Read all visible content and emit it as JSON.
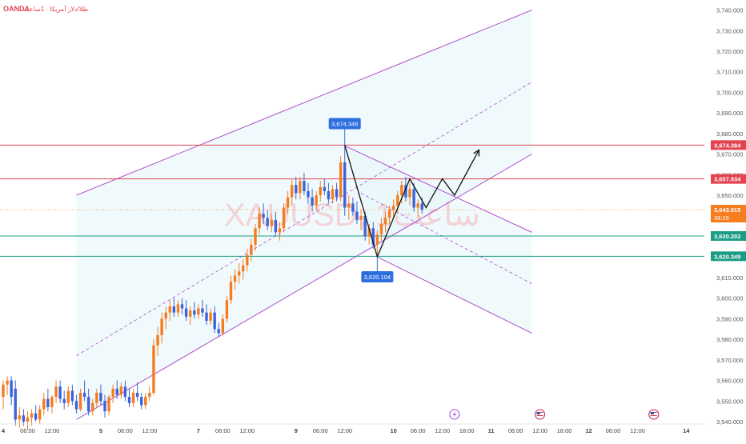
{
  "header": {
    "broker": "OANDA",
    "subtitle": "طلا/دلار آمریکا · 1ساعت"
  },
  "watermark": "XAUUSD, 1ساعت",
  "colors": {
    "up": "#f57c1f",
    "down": "#3d63d8",
    "channel": "#b04ec7",
    "channel_fill": "#e6f6fb",
    "resistance": "#e2434f",
    "support": "#1c9c85",
    "callout": "#2e6fe0",
    "current": "#f57c1f",
    "path": "#111111"
  },
  "chart_data": {
    "type": "candlestick",
    "symbol": "XAUUSD",
    "timeframe": "1ساعت",
    "ylim": [
      3540,
      3741
    ],
    "y_ticks": [
      3540,
      3550,
      3560,
      3570,
      3580,
      3590,
      3600,
      3610,
      3620,
      3630,
      3640,
      3650,
      3660,
      3670,
      3680,
      3690,
      3700,
      3710,
      3720,
      3730,
      3740
    ],
    "y_tick_labels": [
      "3,540.000",
      "3,550.000",
      "3,560.000",
      "3,570.000",
      "3,580.000",
      "3,590.000",
      "3,600.000",
      "3,610.000",
      "3,620.000",
      "3,630.000",
      "3,640.000",
      "3,650.000",
      "3,660.000",
      "3,670.000",
      "3,680.000",
      "3,690.000",
      "3,700.000",
      "3,710.000",
      "3,720.000",
      "3,730.000",
      "3,740.000"
    ],
    "x_ticks": [
      {
        "label": "4",
        "bold": true,
        "t": 0
      },
      {
        "label": "06:00",
        "bold": false,
        "t": 6
      },
      {
        "label": "12:00",
        "bold": false,
        "t": 12
      },
      {
        "label": "5",
        "bold": true,
        "t": 24
      },
      {
        "label": "06:00",
        "bold": false,
        "t": 30
      },
      {
        "label": "12:00",
        "bold": false,
        "t": 36
      },
      {
        "label": "7",
        "bold": true,
        "t": 48
      },
      {
        "label": "06:00",
        "bold": false,
        "t": 54
      },
      {
        "label": "12:00",
        "bold": false,
        "t": 60
      },
      {
        "label": "9",
        "bold": true,
        "t": 72
      },
      {
        "label": "06:00",
        "bold": false,
        "t": 78
      },
      {
        "label": "12:00",
        "bold": false,
        "t": 84
      },
      {
        "label": "10",
        "bold": true,
        "t": 96
      },
      {
        "label": "06:00",
        "bold": false,
        "t": 102
      },
      {
        "label": "12:00",
        "bold": false,
        "t": 108
      },
      {
        "label": "18:00",
        "bold": false,
        "t": 114
      },
      {
        "label": "11",
        "bold": true,
        "t": 120
      },
      {
        "label": "06:00",
        "bold": false,
        "t": 126
      },
      {
        "label": "12:00",
        "bold": false,
        "t": 132
      },
      {
        "label": "18:00",
        "bold": false,
        "t": 138
      },
      {
        "label": "12",
        "bold": true,
        "t": 144
      },
      {
        "label": "06:00",
        "bold": false,
        "t": 150
      },
      {
        "label": "12:00",
        "bold": false,
        "t": 156
      },
      {
        "label": "14",
        "bold": true,
        "t": 168
      }
    ],
    "candles": [
      {
        "t": 0,
        "o": 3552,
        "h": 3560,
        "l": 3546,
        "c": 3558
      },
      {
        "t": 1,
        "o": 3558,
        "h": 3562,
        "l": 3553,
        "c": 3560
      },
      {
        "t": 2,
        "o": 3560,
        "h": 3562,
        "l": 3548,
        "c": 3552
      },
      {
        "t": 3,
        "o": 3556,
        "h": 3560,
        "l": 3538,
        "c": 3541
      },
      {
        "t": 4,
        "o": 3541,
        "h": 3547,
        "l": 3537,
        "c": 3543
      },
      {
        "t": 5,
        "o": 3543,
        "h": 3546,
        "l": 3538,
        "c": 3540
      },
      {
        "t": 6,
        "o": 3540,
        "h": 3545,
        "l": 3536,
        "c": 3542
      },
      {
        "t": 7,
        "o": 3542,
        "h": 3546,
        "l": 3538,
        "c": 3544
      },
      {
        "t": 8,
        "o": 3544,
        "h": 3548,
        "l": 3540,
        "c": 3541
      },
      {
        "t": 9,
        "o": 3541,
        "h": 3548,
        "l": 3539,
        "c": 3546
      },
      {
        "t": 10,
        "o": 3546,
        "h": 3554,
        "l": 3543,
        "c": 3551
      },
      {
        "t": 11,
        "o": 3551,
        "h": 3556,
        "l": 3545,
        "c": 3547
      },
      {
        "t": 12,
        "o": 3547,
        "h": 3553,
        "l": 3544,
        "c": 3552
      },
      {
        "t": 13,
        "o": 3552,
        "h": 3560,
        "l": 3549,
        "c": 3557
      },
      {
        "t": 14,
        "o": 3557,
        "h": 3560,
        "l": 3549,
        "c": 3551
      },
      {
        "t": 15,
        "o": 3551,
        "h": 3555,
        "l": 3546,
        "c": 3549
      },
      {
        "t": 16,
        "o": 3549,
        "h": 3557,
        "l": 3547,
        "c": 3555
      },
      {
        "t": 17,
        "o": 3555,
        "h": 3558,
        "l": 3548,
        "c": 3550
      },
      {
        "t": 18,
        "o": 3550,
        "h": 3553,
        "l": 3544,
        "c": 3546
      },
      {
        "t": 19,
        "o": 3546,
        "h": 3556,
        "l": 3545,
        "c": 3554
      },
      {
        "t": 20,
        "o": 3554,
        "h": 3560,
        "l": 3550,
        "c": 3552
      },
      {
        "t": 21,
        "o": 3552,
        "h": 3556,
        "l": 3543,
        "c": 3545
      },
      {
        "t": 22,
        "o": 3545,
        "h": 3551,
        "l": 3543,
        "c": 3549
      },
      {
        "t": 23,
        "o": 3549,
        "h": 3556,
        "l": 3547,
        "c": 3554
      },
      {
        "t": 24,
        "o": 3554,
        "h": 3558,
        "l": 3548,
        "c": 3550
      },
      {
        "t": 25,
        "o": 3550,
        "h": 3553,
        "l": 3542,
        "c": 3545
      },
      {
        "t": 26,
        "o": 3545,
        "h": 3553,
        "l": 3543,
        "c": 3552
      },
      {
        "t": 27,
        "o": 3552,
        "h": 3558,
        "l": 3549,
        "c": 3556
      },
      {
        "t": 28,
        "o": 3556,
        "h": 3560,
        "l": 3551,
        "c": 3553
      },
      {
        "t": 29,
        "o": 3553,
        "h": 3559,
        "l": 3551,
        "c": 3557
      },
      {
        "t": 30,
        "o": 3557,
        "h": 3560,
        "l": 3550,
        "c": 3552
      },
      {
        "t": 31,
        "o": 3552,
        "h": 3556,
        "l": 3547,
        "c": 3549
      },
      {
        "t": 32,
        "o": 3549,
        "h": 3556,
        "l": 3547,
        "c": 3554
      },
      {
        "t": 33,
        "o": 3554,
        "h": 3559,
        "l": 3550,
        "c": 3552
      },
      {
        "t": 34,
        "o": 3552,
        "h": 3554,
        "l": 3546,
        "c": 3548
      },
      {
        "t": 35,
        "o": 3548,
        "h": 3554,
        "l": 3546,
        "c": 3552
      },
      {
        "t": 36,
        "o": 3552,
        "h": 3557,
        "l": 3550,
        "c": 3554
      },
      {
        "t": 37,
        "o": 3554,
        "h": 3580,
        "l": 3553,
        "c": 3577
      },
      {
        "t": 38,
        "o": 3577,
        "h": 3586,
        "l": 3572,
        "c": 3582
      },
      {
        "t": 39,
        "o": 3582,
        "h": 3593,
        "l": 3578,
        "c": 3590
      },
      {
        "t": 40,
        "o": 3590,
        "h": 3596,
        "l": 3585,
        "c": 3593
      },
      {
        "t": 41,
        "o": 3593,
        "h": 3599,
        "l": 3589,
        "c": 3596
      },
      {
        "t": 42,
        "o": 3596,
        "h": 3600,
        "l": 3591,
        "c": 3593
      },
      {
        "t": 43,
        "o": 3593,
        "h": 3599,
        "l": 3591,
        "c": 3597
      },
      {
        "t": 44,
        "o": 3597,
        "h": 3600,
        "l": 3592,
        "c": 3595
      },
      {
        "t": 45,
        "o": 3595,
        "h": 3599,
        "l": 3589,
        "c": 3591
      },
      {
        "t": 46,
        "o": 3591,
        "h": 3596,
        "l": 3587,
        "c": 3594
      },
      {
        "t": 47,
        "o": 3594,
        "h": 3598,
        "l": 3590,
        "c": 3592
      },
      {
        "t": 48,
        "o": 3592,
        "h": 3597,
        "l": 3590,
        "c": 3595
      },
      {
        "t": 49,
        "o": 3595,
        "h": 3599,
        "l": 3591,
        "c": 3593
      },
      {
        "t": 50,
        "o": 3593,
        "h": 3597,
        "l": 3587,
        "c": 3589
      },
      {
        "t": 51,
        "o": 3589,
        "h": 3595,
        "l": 3587,
        "c": 3593
      },
      {
        "t": 52,
        "o": 3593,
        "h": 3596,
        "l": 3583,
        "c": 3585
      },
      {
        "t": 53,
        "o": 3585,
        "h": 3588,
        "l": 3581,
        "c": 3583
      },
      {
        "t": 54,
        "o": 3583,
        "h": 3592,
        "l": 3582,
        "c": 3590
      },
      {
        "t": 55,
        "o": 3590,
        "h": 3601,
        "l": 3588,
        "c": 3599
      },
      {
        "t": 56,
        "o": 3599,
        "h": 3611,
        "l": 3597,
        "c": 3608
      },
      {
        "t": 57,
        "o": 3608,
        "h": 3614,
        "l": 3604,
        "c": 3611
      },
      {
        "t": 58,
        "o": 3611,
        "h": 3617,
        "l": 3607,
        "c": 3613
      },
      {
        "t": 59,
        "o": 3613,
        "h": 3619,
        "l": 3609,
        "c": 3616
      },
      {
        "t": 60,
        "o": 3616,
        "h": 3624,
        "l": 3613,
        "c": 3621
      },
      {
        "t": 61,
        "o": 3621,
        "h": 3629,
        "l": 3618,
        "c": 3626
      },
      {
        "t": 62,
        "o": 3626,
        "h": 3636,
        "l": 3623,
        "c": 3634
      },
      {
        "t": 63,
        "o": 3634,
        "h": 3644,
        "l": 3631,
        "c": 3641
      },
      {
        "t": 64,
        "o": 3641,
        "h": 3646,
        "l": 3636,
        "c": 3639
      },
      {
        "t": 65,
        "o": 3639,
        "h": 3643,
        "l": 3633,
        "c": 3635
      },
      {
        "t": 66,
        "o": 3635,
        "h": 3641,
        "l": 3632,
        "c": 3638
      },
      {
        "t": 67,
        "o": 3638,
        "h": 3642,
        "l": 3630,
        "c": 3632
      },
      {
        "t": 68,
        "o": 3632,
        "h": 3637,
        "l": 3628,
        "c": 3634
      },
      {
        "t": 69,
        "o": 3634,
        "h": 3646,
        "l": 3632,
        "c": 3644
      },
      {
        "t": 70,
        "o": 3644,
        "h": 3652,
        "l": 3641,
        "c": 3649
      },
      {
        "t": 71,
        "o": 3649,
        "h": 3658,
        "l": 3645,
        "c": 3655
      },
      {
        "t": 72,
        "o": 3655,
        "h": 3659,
        "l": 3648,
        "c": 3651
      },
      {
        "t": 73,
        "o": 3651,
        "h": 3659,
        "l": 3648,
        "c": 3657
      },
      {
        "t": 74,
        "o": 3657,
        "h": 3661,
        "l": 3650,
        "c": 3652
      },
      {
        "t": 75,
        "o": 3652,
        "h": 3656,
        "l": 3646,
        "c": 3649
      },
      {
        "t": 76,
        "o": 3649,
        "h": 3653,
        "l": 3642,
        "c": 3645
      },
      {
        "t": 77,
        "o": 3645,
        "h": 3652,
        "l": 3643,
        "c": 3650
      },
      {
        "t": 78,
        "o": 3650,
        "h": 3657,
        "l": 3647,
        "c": 3654
      },
      {
        "t": 79,
        "o": 3654,
        "h": 3658,
        "l": 3650,
        "c": 3652
      },
      {
        "t": 80,
        "o": 3652,
        "h": 3656,
        "l": 3646,
        "c": 3648
      },
      {
        "t": 81,
        "o": 3648,
        "h": 3655,
        "l": 3646,
        "c": 3653
      },
      {
        "t": 82,
        "o": 3653,
        "h": 3656,
        "l": 3647,
        "c": 3649
      },
      {
        "t": 83,
        "o": 3649,
        "h": 3669,
        "l": 3647,
        "c": 3666
      },
      {
        "t": 84,
        "o": 3666,
        "h": 3674.346,
        "l": 3640,
        "c": 3644
      },
      {
        "t": 85,
        "o": 3644,
        "h": 3650,
        "l": 3638,
        "c": 3646
      },
      {
        "t": 86,
        "o": 3646,
        "h": 3649,
        "l": 3640,
        "c": 3642
      },
      {
        "t": 87,
        "o": 3642,
        "h": 3647,
        "l": 3636,
        "c": 3638
      },
      {
        "t": 88,
        "o": 3638,
        "h": 3643,
        "l": 3633,
        "c": 3640
      },
      {
        "t": 89,
        "o": 3640,
        "h": 3642,
        "l": 3628,
        "c": 3630
      },
      {
        "t": 90,
        "o": 3630,
        "h": 3636,
        "l": 3626,
        "c": 3634
      },
      {
        "t": 91,
        "o": 3634,
        "h": 3637,
        "l": 3624,
        "c": 3626
      },
      {
        "t": 92,
        "o": 3626,
        "h": 3633,
        "l": 3620.104,
        "c": 3631
      },
      {
        "t": 93,
        "o": 3631,
        "h": 3639,
        "l": 3628,
        "c": 3636
      },
      {
        "t": 94,
        "o": 3636,
        "h": 3642,
        "l": 3632,
        "c": 3639
      },
      {
        "t": 95,
        "o": 3639,
        "h": 3645,
        "l": 3636,
        "c": 3643
      },
      {
        "t": 96,
        "o": 3643,
        "h": 3648,
        "l": 3639,
        "c": 3645
      },
      {
        "t": 97,
        "o": 3645,
        "h": 3652,
        "l": 3641,
        "c": 3650
      },
      {
        "t": 98,
        "o": 3650,
        "h": 3657,
        "l": 3646,
        "c": 3655
      },
      {
        "t": 99,
        "o": 3655,
        "h": 3659,
        "l": 3647,
        "c": 3649
      },
      {
        "t": 100,
        "o": 3649,
        "h": 3656,
        "l": 3645,
        "c": 3653
      },
      {
        "t": 101,
        "o": 3653,
        "h": 3656,
        "l": 3642,
        "c": 3644
      },
      {
        "t": 102,
        "o": 3644,
        "h": 3648,
        "l": 3639,
        "c": 3646
      },
      {
        "t": 103,
        "o": 3646,
        "h": 3649,
        "l": 3641,
        "c": 3643.015
      }
    ],
    "channel": {
      "upper": [
        {
          "t": 18,
          "p": 3650
        },
        {
          "t": 130,
          "p": 3740
        }
      ],
      "lower": [
        {
          "t": 18,
          "p": 3541
        },
        {
          "t": 130,
          "p": 3670
        }
      ],
      "mid": [
        {
          "t": 18,
          "p": 3572
        },
        {
          "t": 130,
          "p": 3705
        }
      ]
    },
    "descending_channel": {
      "upper": [
        {
          "t": 84,
          "p": 3674
        },
        {
          "t": 130,
          "p": 3632
        }
      ],
      "lower": [
        {
          "t": 92,
          "p": 3620
        },
        {
          "t": 130,
          "p": 3583
        }
      ],
      "mid": [
        {
          "t": 88,
          "p": 3651
        },
        {
          "t": 130,
          "p": 3607
        }
      ]
    },
    "projection_path": [
      {
        "t": 84,
        "p": 3674.346
      },
      {
        "t": 92,
        "p": 3620.104
      },
      {
        "t": 100,
        "p": 3657.934
      },
      {
        "t": 104,
        "p": 3644
      },
      {
        "t": 108,
        "p": 3658
      },
      {
        "t": 111,
        "p": 3650
      },
      {
        "t": 117,
        "p": 3672
      }
    ],
    "levels": [
      {
        "price": 3674.384,
        "label": "3,674.384",
        "kind": "resistance"
      },
      {
        "price": 3657.934,
        "label": "3,657.934",
        "kind": "resistance"
      },
      {
        "price": 3630.202,
        "label": "3,630.202",
        "kind": "support"
      },
      {
        "price": 3620.349,
        "label": "3,620.349",
        "kind": "support"
      }
    ],
    "current_price": {
      "price": 3643.015,
      "label": "3,643.015",
      "countdown": "38:26"
    },
    "callouts": [
      {
        "t": 84,
        "price": 3674.346,
        "label": "3,674.346",
        "position": "above"
      },
      {
        "t": 92,
        "price": 3620.104,
        "label": "3,620.104",
        "position": "below"
      }
    ],
    "events": [
      {
        "t": 111,
        "icon": "lightning-icon"
      },
      {
        "t": 132,
        "icon": "us-flag-icon"
      },
      {
        "t": 160,
        "icon": "us-flag-icon"
      }
    ]
  }
}
